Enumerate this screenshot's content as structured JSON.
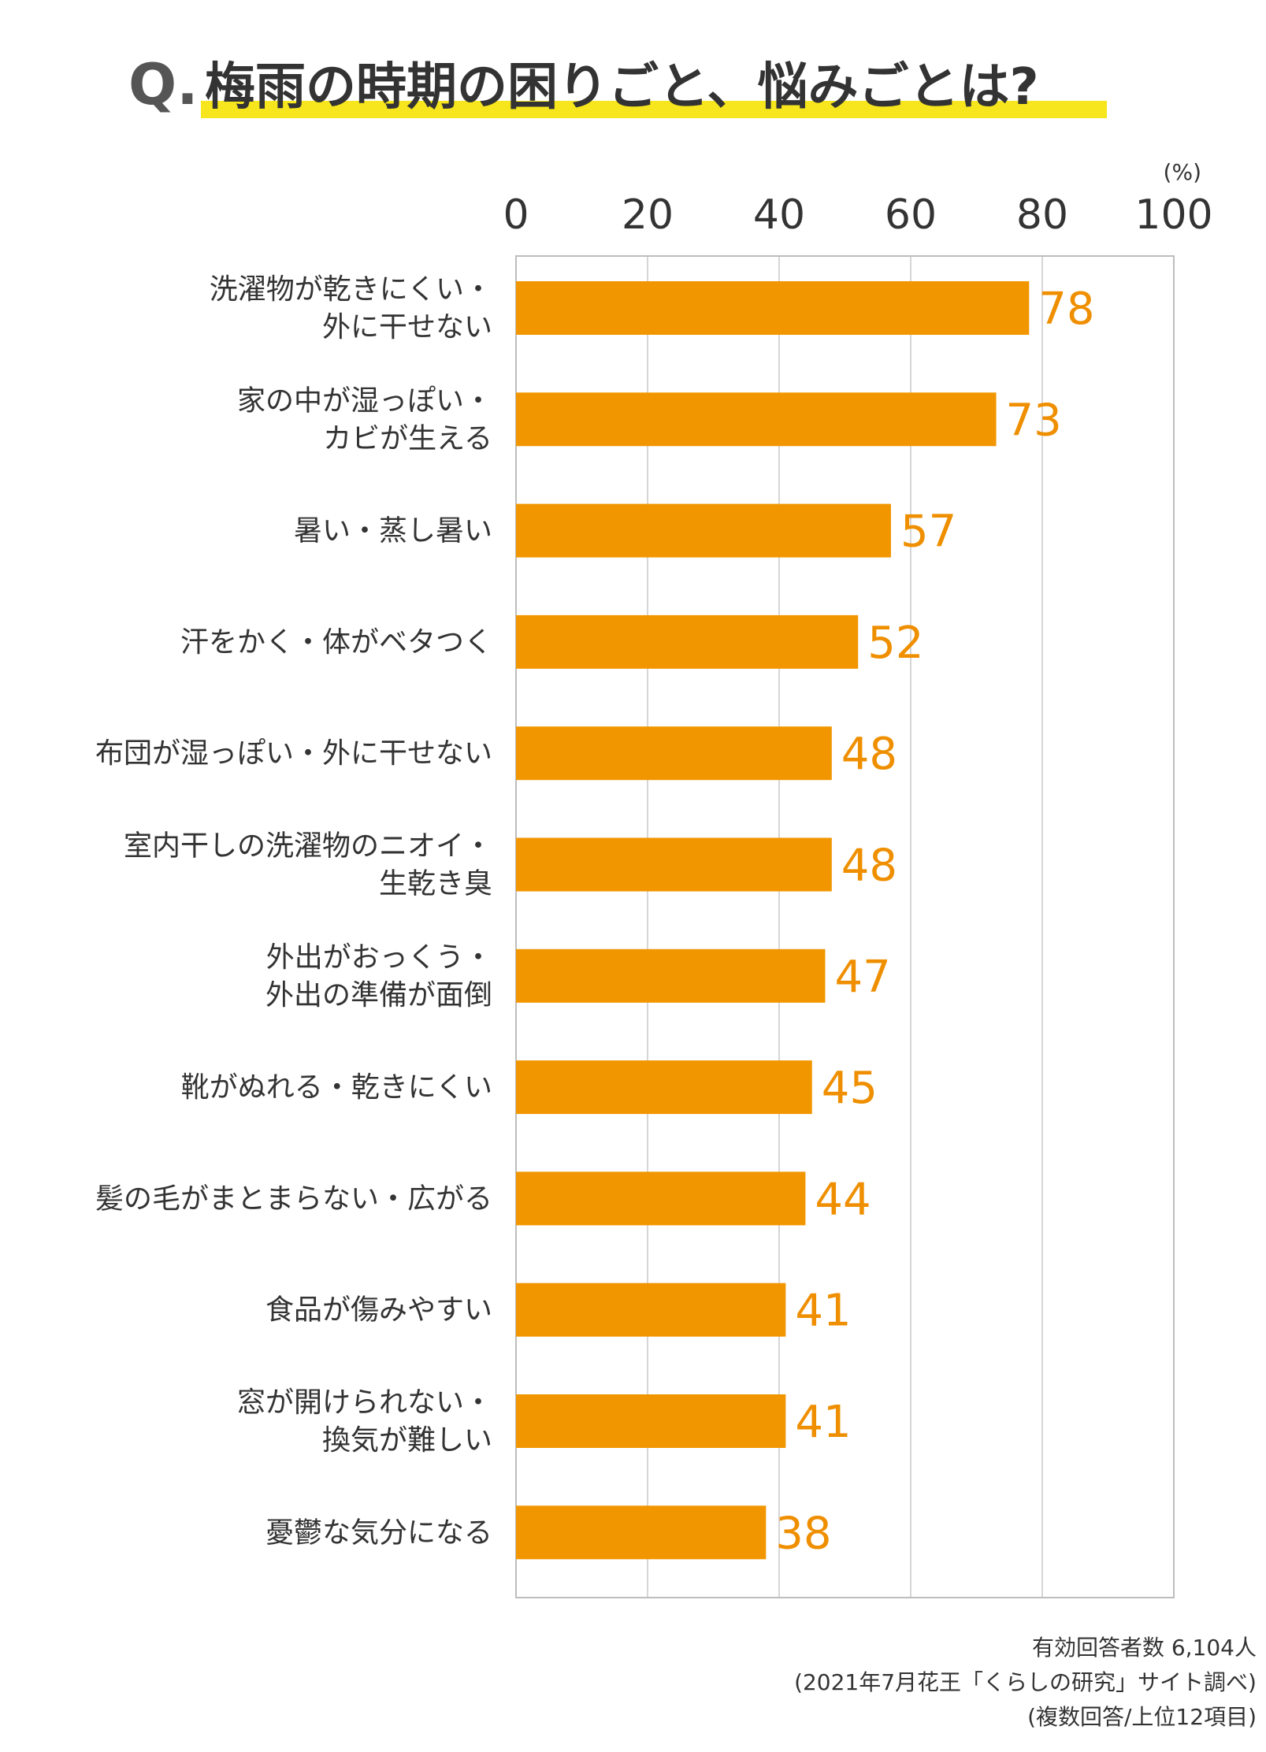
{
  "title": {
    "prefix": "Q.",
    "text": "梅雨の時期の困りごと、悩みごとは?"
  },
  "colors": {
    "bar": "#f29600",
    "value_label": "#ef8f00",
    "highlight": "#f7e61d",
    "grid": "#c8c8c8",
    "text": "#333333"
  },
  "chart_data": {
    "type": "bar",
    "orientation": "horizontal",
    "unit_label": "(%)",
    "xlim": [
      0,
      100
    ],
    "ticks": [
      0,
      20,
      40,
      60,
      80,
      100
    ],
    "grid": true,
    "categories": [
      [
        "洗濯物が乾きにくい・",
        "外に干せない"
      ],
      [
        "家の中が湿っぽい・",
        "カビが生える"
      ],
      [
        "暑い・蒸し暑い"
      ],
      [
        "汗をかく・体がベタつく"
      ],
      [
        "布団が湿っぽい・外に干せない"
      ],
      [
        "室内干しの洗濯物のニオイ・",
        "生乾き臭"
      ],
      [
        "外出がおっくう・",
        "外出の準備が面倒"
      ],
      [
        "靴がぬれる・乾きにくい"
      ],
      [
        "髪の毛がまとまらない・広がる"
      ],
      [
        "食品が傷みやすい"
      ],
      [
        "窓が開けられない・",
        "換気が難しい"
      ],
      [
        "憂鬱な気分になる"
      ]
    ],
    "values": [
      78,
      73,
      57,
      52,
      48,
      48,
      47,
      45,
      44,
      41,
      41,
      38
    ]
  },
  "footer": {
    "line1": "有効回答者数 6,104人",
    "line2": "(2021年7月花王「くらしの研究」サイト調べ)",
    "line3": "(複数回答/上位12項目)"
  }
}
